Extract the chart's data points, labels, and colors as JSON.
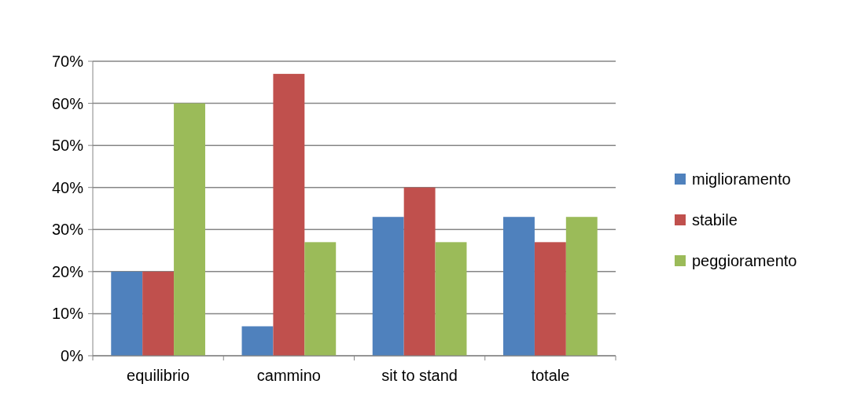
{
  "chart_data": {
    "type": "bar",
    "categories": [
      "equilibrio",
      "cammino",
      "sit to stand",
      "totale"
    ],
    "series": [
      {
        "name": "miglioramento",
        "color": "#4f81bd",
        "values": [
          20,
          7,
          33,
          33
        ]
      },
      {
        "name": "stabile",
        "color": "#c0504d",
        "values": [
          20,
          67,
          40,
          27
        ]
      },
      {
        "name": "peggioramento",
        "color": "#9bbb59",
        "values": [
          60,
          27,
          27,
          33
        ]
      }
    ],
    "ylim": [
      0,
      70
    ],
    "yticks": [
      {
        "value": 0,
        "label": "0%"
      },
      {
        "value": 10,
        "label": "10%"
      },
      {
        "value": 20,
        "label": "20%"
      },
      {
        "value": 30,
        "label": "30%"
      },
      {
        "value": 40,
        "label": "40%"
      },
      {
        "value": 50,
        "label": "50%"
      },
      {
        "value": 60,
        "label": "60%"
      },
      {
        "value": 70,
        "label": "70%"
      }
    ],
    "grid": true,
    "legend": "right"
  }
}
